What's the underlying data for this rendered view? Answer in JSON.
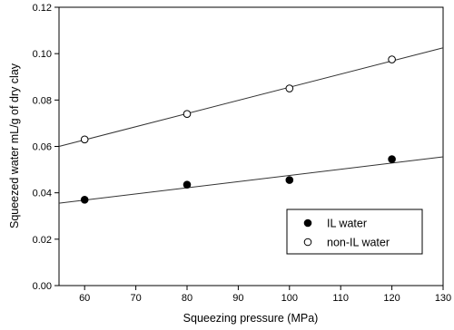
{
  "chart_data": {
    "type": "scatter",
    "xlabel": "Squeezing pressure (MPa)",
    "ylabel": "Squeezed water  mL/g of dry clay",
    "xlim": [
      55,
      130
    ],
    "ylim": [
      0.0,
      0.12
    ],
    "x_ticks": [
      60,
      70,
      80,
      90,
      100,
      110,
      120,
      130
    ],
    "y_ticks": [
      0.0,
      0.02,
      0.04,
      0.06,
      0.08,
      0.1,
      0.12
    ],
    "x_tick_labels": [
      "60",
      "70",
      "80",
      "90",
      "100",
      "110",
      "120",
      "130"
    ],
    "y_tick_labels": [
      "0.00",
      "0.02",
      "0.04",
      "0.06",
      "0.08",
      "0.10",
      "0.12"
    ],
    "grid": false,
    "legend_position": "bottom-right",
    "series": [
      {
        "name": "IL water",
        "marker": "filled-circle",
        "x": [
          60,
          80,
          100,
          120
        ],
        "y": [
          0.037,
          0.0435,
          0.0455,
          0.0545
        ],
        "fit_line": {
          "x": [
            55,
            130
          ],
          "y": [
            0.0355,
            0.0555
          ]
        }
      },
      {
        "name": "non-IL water",
        "marker": "open-circle",
        "x": [
          60,
          80,
          100,
          120
        ],
        "y": [
          0.063,
          0.074,
          0.085,
          0.0975
        ],
        "fit_line": {
          "x": [
            55,
            130
          ],
          "y": [
            0.06,
            0.1025
          ]
        }
      }
    ]
  }
}
